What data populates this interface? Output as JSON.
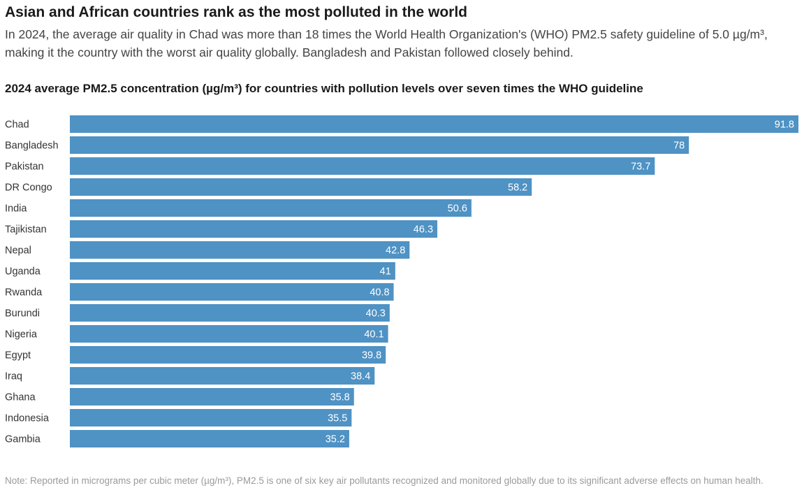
{
  "headline": "Asian and African countries rank as the most polluted in the world",
  "dek": "In 2024, the average air quality in Chad was more than 18 times the World Health Organization's (WHO) PM2.5 safety guideline of 5.0 µg/m³, making it the country with the worst air quality globally. Bangladesh and Pakistan followed closely behind.",
  "note": "Note: Reported in micrograms per cubic meter (µg/m³), PM2.5 is one of six key air pollutants recognized and monitored globally due to its significant adverse effects on human health.",
  "colors": {
    "bar": "#4f92c4",
    "value_label": "#ffffff"
  },
  "chart_data": {
    "type": "bar",
    "orientation": "horizontal",
    "title": "2024 average PM2.5 concentration (µg/m³) for countries with pollution levels over seven times the WHO guideline",
    "xlabel": "",
    "ylabel": "",
    "xlim": [
      0,
      91.8
    ],
    "grid": false,
    "legend": "none",
    "categories": [
      "Chad",
      "Bangladesh",
      "Pakistan",
      "DR Congo",
      "India",
      "Tajikistan",
      "Nepal",
      "Uganda",
      "Rwanda",
      "Burundi",
      "Nigeria",
      "Egypt",
      "Iraq",
      "Ghana",
      "Indonesia",
      "Gambia"
    ],
    "values": [
      91.8,
      78,
      73.7,
      58.2,
      50.6,
      46.3,
      42.8,
      41,
      40.8,
      40.3,
      40.1,
      39.8,
      38.4,
      35.8,
      35.5,
      35.2
    ],
    "value_labels": [
      "91.8",
      "78",
      "73.7",
      "58.2",
      "50.6",
      "46.3",
      "42.8",
      "41",
      "40.8",
      "40.3",
      "40.1",
      "39.8",
      "38.4",
      "35.8",
      "35.5",
      "35.2"
    ]
  }
}
